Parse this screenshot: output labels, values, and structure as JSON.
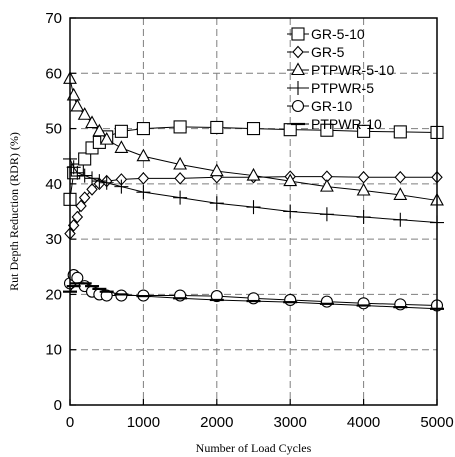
{
  "chart_data": {
    "type": "scatter",
    "title": "",
    "xlabel": "Number of Load Cycles",
    "ylabel": "Rut Depth Reduction (RDR) (%)",
    "xlim": [
      0,
      5000
    ],
    "ylim": [
      0,
      70
    ],
    "x_ticks": [
      0,
      1000,
      2000,
      3000,
      4000,
      5000
    ],
    "y_ticks": [
      0,
      10,
      20,
      30,
      40,
      50,
      60,
      70
    ],
    "grid": "dashed",
    "legend_position": "top-right",
    "series": [
      {
        "name": "GR-5-10",
        "marker": "square",
        "x": [
          0,
          50,
          100,
          200,
          300,
          400,
          500,
          700,
          1000,
          1500,
          2000,
          2500,
          3000,
          3500,
          4000,
          4500,
          5000
        ],
        "y": [
          37.2,
          42,
          42.5,
          44.5,
          46.5,
          47.5,
          48.5,
          49.5,
          50,
          50.3,
          50.2,
          50,
          49.8,
          49.7,
          49.5,
          49.4,
          49.3
        ]
      },
      {
        "name": "GR-5",
        "marker": "diamond",
        "x": [
          0,
          50,
          100,
          150,
          200,
          300,
          400,
          500,
          700,
          1000,
          1500,
          2000,
          2500,
          3000,
          3500,
          4000,
          4500,
          5000
        ],
        "y": [
          31,
          32.5,
          34,
          36,
          37.5,
          39,
          40,
          40.5,
          40.8,
          41,
          41,
          41.2,
          41.2,
          41.3,
          41.3,
          41.2,
          41.2,
          41.2
        ]
      },
      {
        "name": "PTPWR-5-10",
        "marker": "triangle",
        "x": [
          0,
          50,
          100,
          200,
          300,
          400,
          500,
          700,
          1000,
          1500,
          2000,
          2500,
          3000,
          3500,
          4000,
          4500,
          5000
        ],
        "y": [
          59,
          56,
          54,
          52.5,
          51,
          49.5,
          48,
          46.5,
          45,
          43.5,
          42.3,
          41.5,
          40.5,
          39.5,
          38.8,
          38,
          37
        ]
      },
      {
        "name": "PTPWR-5",
        "marker": "plus",
        "x": [
          0,
          50,
          100,
          200,
          300,
          400,
          500,
          700,
          1000,
          1500,
          2000,
          2500,
          3000,
          3500,
          4000,
          4500,
          5000
        ],
        "y": [
          44.5,
          43,
          42,
          41.5,
          41,
          40.5,
          40.2,
          39.5,
          38.5,
          37.5,
          36.5,
          35.8,
          35,
          34.5,
          34,
          33.5,
          33
        ]
      },
      {
        "name": "GR-10",
        "marker": "circle",
        "x": [
          0,
          50,
          100,
          200,
          300,
          400,
          500,
          700,
          1000,
          1500,
          2000,
          2500,
          3000,
          3500,
          4000,
          4500,
          5000
        ],
        "y": [
          22,
          23.5,
          23,
          21.5,
          20.5,
          20,
          19.8,
          19.8,
          19.8,
          19.8,
          19.7,
          19.3,
          19,
          18.7,
          18.4,
          18.2,
          18
        ]
      },
      {
        "name": "PTPWR-10",
        "marker": "dash",
        "x": [
          0,
          50,
          100,
          200,
          300,
          400,
          500,
          700,
          1000,
          1500,
          2000,
          2500,
          3000,
          3500,
          4000,
          4500,
          5000
        ],
        "y": [
          20.5,
          21.5,
          22,
          22,
          21.5,
          21,
          20.5,
          20,
          19.7,
          19.3,
          19,
          18.8,
          18.6,
          18.3,
          18,
          17.7,
          17.4
        ]
      }
    ]
  }
}
